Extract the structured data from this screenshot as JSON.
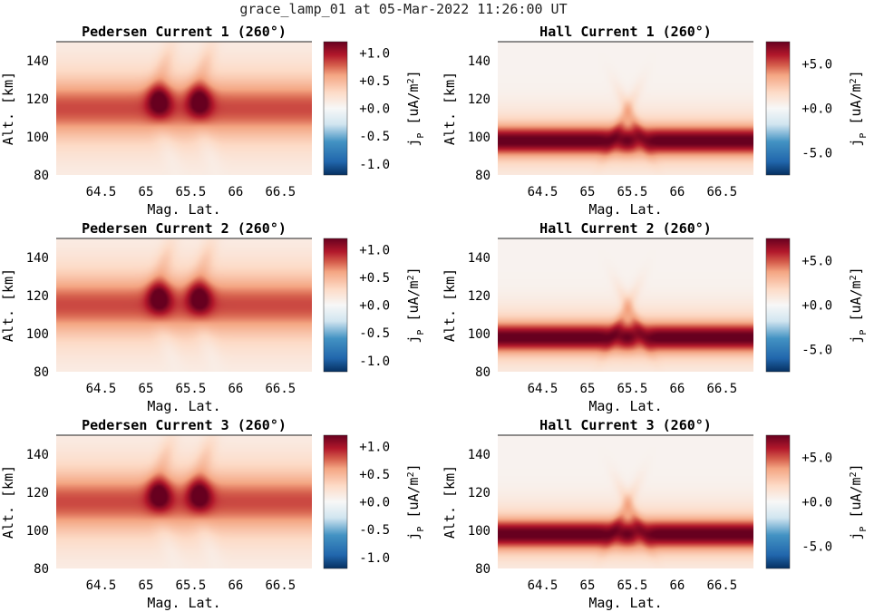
{
  "figure": {
    "title": "grace_lamp_01 at 05-Mar-2022 11:26:00 UT"
  },
  "chart_data": [
    {
      "type": "heatmap",
      "title": "Pedersen Current 1 (260°)",
      "xlabel": "Mag. Lat.",
      "ylabel": "Alt. [km]",
      "xlim": [
        64.0,
        66.85
      ],
      "ylim": [
        80,
        150
      ],
      "xticks": [
        64.5,
        65,
        65.5,
        66,
        66.5
      ],
      "xtick_labels": [
        "64.5",
        "65",
        "65.5",
        "66",
        "66.5"
      ],
      "yticks": [
        80,
        100,
        120,
        140
      ],
      "ytick_labels": [
        "80",
        "100",
        "120",
        "140"
      ],
      "colorbar": {
        "label": "j_P [uA/m^2]",
        "label_main": "j",
        "label_sub": "P",
        "label_unit": " [uA/m",
        "label_sup": "2",
        "label_close": "]",
        "range": [
          -1.2,
          1.2
        ],
        "ticks": [
          1.0,
          0.5,
          0.0,
          -0.5,
          -1.0
        ],
        "tick_labels": [
          "+1.0",
          "+0.5",
          "+0.0",
          "-0.5",
          "-1.0"
        ]
      },
      "field": {
        "kind": "pedersen",
        "band_center_km": 115,
        "band_peak": 0.75,
        "blob_lats": [
          65.15,
          65.6
        ],
        "blob_peak": 1.2
      }
    },
    {
      "type": "heatmap",
      "title": "Hall Current 1 (260°)",
      "xlabel": "Mag. Lat.",
      "ylabel": "Alt. [km]",
      "xlim": [
        64.0,
        66.85
      ],
      "ylim": [
        80,
        150
      ],
      "xticks": [
        64.5,
        65,
        65.5,
        66,
        66.5
      ],
      "xtick_labels": [
        "64.5",
        "65",
        "65.5",
        "66",
        "66.5"
      ],
      "yticks": [
        80,
        100,
        120,
        140
      ],
      "ytick_labels": [
        "80",
        "100",
        "120",
        "140"
      ],
      "colorbar": {
        "label": "j_P [uA/m^2]",
        "label_main": "j",
        "label_sub": "P",
        "label_unit": " [uA/m",
        "label_sup": "2",
        "label_close": "]",
        "range": [
          -7.5,
          7.5
        ],
        "ticks": [
          5.0,
          0.0,
          -5.0
        ],
        "tick_labels": [
          "+5.0",
          "+0.0",
          "-5.0"
        ]
      },
      "field": {
        "kind": "hall",
        "band_center_km": 98,
        "band_peak": 7.5,
        "blob_lats": [
          65.3,
          65.6
        ],
        "blob_peak": 7.5
      }
    },
    {
      "type": "heatmap",
      "title": "Pedersen Current 2 (260°)",
      "xlabel": "Mag. Lat.",
      "ylabel": "Alt. [km]",
      "xlim": [
        64.0,
        66.85
      ],
      "ylim": [
        80,
        150
      ],
      "xticks": [
        64.5,
        65,
        65.5,
        66,
        66.5
      ],
      "xtick_labels": [
        "64.5",
        "65",
        "65.5",
        "66",
        "66.5"
      ],
      "yticks": [
        80,
        100,
        120,
        140
      ],
      "ytick_labels": [
        "80",
        "100",
        "120",
        "140"
      ],
      "colorbar": {
        "label": "j_P [uA/m^2]",
        "label_main": "j",
        "label_sub": "P",
        "label_unit": " [uA/m",
        "label_sup": "2",
        "label_close": "]",
        "range": [
          -1.2,
          1.2
        ],
        "ticks": [
          1.0,
          0.5,
          0.0,
          -0.5,
          -1.0
        ],
        "tick_labels": [
          "+1.0",
          "+0.5",
          "+0.0",
          "-0.5",
          "-1.0"
        ]
      },
      "field": {
        "kind": "pedersen",
        "band_center_km": 115,
        "band_peak": 0.75,
        "blob_lats": [
          65.15,
          65.6
        ],
        "blob_peak": 1.2
      }
    },
    {
      "type": "heatmap",
      "title": "Hall Current 2 (260°)",
      "xlabel": "Mag. Lat.",
      "ylabel": "Alt. [km]",
      "xlim": [
        64.0,
        66.85
      ],
      "ylim": [
        80,
        150
      ],
      "xticks": [
        64.5,
        65,
        65.5,
        66,
        66.5
      ],
      "xtick_labels": [
        "64.5",
        "65",
        "65.5",
        "66",
        "66.5"
      ],
      "yticks": [
        80,
        100,
        120,
        140
      ],
      "ytick_labels": [
        "80",
        "100",
        "120",
        "140"
      ],
      "colorbar": {
        "label": "j_P [uA/m^2]",
        "label_main": "j",
        "label_sub": "P",
        "label_unit": " [uA/m",
        "label_sup": "2",
        "label_close": "]",
        "range": [
          -7.5,
          7.5
        ],
        "ticks": [
          5.0,
          0.0,
          -5.0
        ],
        "tick_labels": [
          "+5.0",
          "+0.0",
          "-5.0"
        ]
      },
      "field": {
        "kind": "hall",
        "band_center_km": 98,
        "band_peak": 7.5,
        "blob_lats": [
          65.3,
          65.6
        ],
        "blob_peak": 7.5
      }
    },
    {
      "type": "heatmap",
      "title": "Pedersen Current 3 (260°)",
      "xlabel": "Mag. Lat.",
      "ylabel": "Alt. [km]",
      "xlim": [
        64.0,
        66.85
      ],
      "ylim": [
        80,
        150
      ],
      "xticks": [
        64.5,
        65,
        65.5,
        66,
        66.5
      ],
      "xtick_labels": [
        "64.5",
        "65",
        "65.5",
        "66",
        "66.5"
      ],
      "yticks": [
        80,
        100,
        120,
        140
      ],
      "ytick_labels": [
        "80",
        "100",
        "120",
        "140"
      ],
      "colorbar": {
        "label": "j_P [uA/m^2]",
        "label_main": "j",
        "label_sub": "P",
        "label_unit": " [uA/m",
        "label_sup": "2",
        "label_close": "]",
        "range": [
          -1.2,
          1.2
        ],
        "ticks": [
          1.0,
          0.5,
          0.0,
          -0.5,
          -1.0
        ],
        "tick_labels": [
          "+1.0",
          "+0.5",
          "+0.0",
          "-0.5",
          "-1.0"
        ]
      },
      "field": {
        "kind": "pedersen",
        "band_center_km": 115,
        "band_peak": 0.75,
        "blob_lats": [
          65.15,
          65.6
        ],
        "blob_peak": 1.2
      }
    },
    {
      "type": "heatmap",
      "title": "Hall Current 3 (260°)",
      "xlabel": "Mag. Lat.",
      "ylabel": "Alt. [km]",
      "xlim": [
        64.0,
        66.85
      ],
      "ylim": [
        80,
        150
      ],
      "xticks": [
        64.5,
        65,
        65.5,
        66,
        66.5
      ],
      "xtick_labels": [
        "64.5",
        "65",
        "65.5",
        "66",
        "66.5"
      ],
      "yticks": [
        80,
        100,
        120,
        140
      ],
      "ytick_labels": [
        "80",
        "100",
        "120",
        "140"
      ],
      "colorbar": {
        "label": "j_P [uA/m^2]",
        "label_main": "j",
        "label_sub": "P",
        "label_unit": " [uA/m",
        "label_sup": "2",
        "label_close": "]",
        "range": [
          -7.5,
          7.5
        ],
        "ticks": [
          5.0,
          0.0,
          -5.0
        ],
        "tick_labels": [
          "+5.0",
          "+0.0",
          "-5.0"
        ]
      },
      "field": {
        "kind": "hall",
        "band_center_km": 98,
        "band_peak": 7.5,
        "blob_lats": [
          65.3,
          65.6
        ],
        "blob_peak": 7.5
      }
    }
  ]
}
